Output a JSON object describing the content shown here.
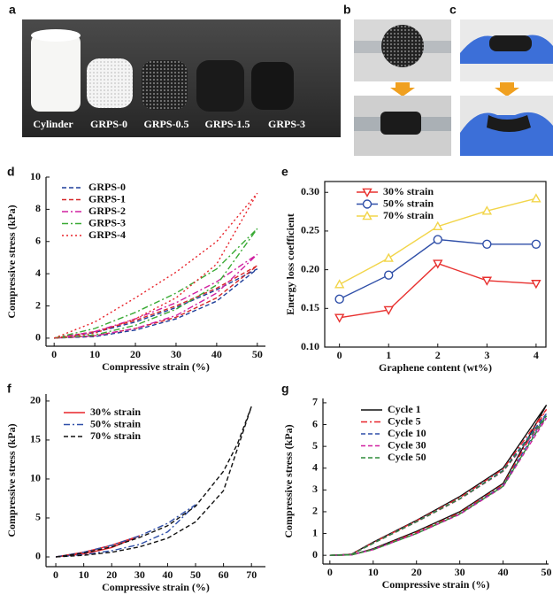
{
  "photo_panels": [
    {
      "panel": "a",
      "labels": [
        "Cylinder",
        "GRPS-0",
        "GRPS-0.5",
        "GRPS-1.5",
        "GRPS-3"
      ]
    },
    {
      "panel": "b"
    },
    {
      "panel": "c"
    }
  ],
  "chart_data": [
    {
      "panel": "d",
      "type": "line",
      "x_label": "Compressive strain (%)",
      "y_label": "Compressive stress (kPa)",
      "xlim": [
        -2,
        52
      ],
      "ylim": [
        -0.5,
        10
      ],
      "xticks": [
        0,
        10,
        20,
        30,
        40,
        50
      ],
      "yticks": [
        0,
        2,
        4,
        6,
        8,
        10
      ],
      "frame": false,
      "legend": "upper left",
      "x": [
        0,
        10,
        20,
        30,
        40,
        50,
        40,
        30,
        20,
        10,
        0
      ],
      "series": [
        {
          "name": "GRPS-0",
          "color": "#1f3f9a",
          "linestyle": "dashed",
          "values": [
            0,
            0.35,
            1.0,
            1.9,
            3.0,
            4.3,
            2.3,
            1.2,
            0.5,
            0.1,
            0
          ]
        },
        {
          "name": "GRPS-1",
          "color": "#d62728",
          "linestyle": "dashed",
          "values": [
            0,
            0.4,
            1.1,
            2.0,
            3.1,
            4.5,
            2.5,
            1.3,
            0.6,
            0.15,
            0
          ]
        },
        {
          "name": "GRPS-2",
          "color": "#d020a0",
          "linestyle": "dashdot",
          "values": [
            0,
            0.4,
            1.2,
            2.2,
            3.5,
            5.2,
            2.8,
            1.4,
            0.6,
            0.15,
            0
          ]
        },
        {
          "name": "GRPS-3",
          "color": "#3aaa35",
          "linestyle": "dashdot",
          "values": [
            0,
            0.6,
            1.6,
            2.8,
            4.3,
            6.8,
            3.3,
            1.8,
            0.8,
            0.2,
            0
          ]
        },
        {
          "name": "GRPS-4",
          "color": "#e8232a",
          "linestyle": "dotted",
          "values": [
            0,
            1.0,
            2.5,
            4.1,
            6.0,
            9.0,
            4.6,
            2.5,
            1.2,
            0.3,
            0
          ]
        }
      ]
    },
    {
      "panel": "e",
      "type": "line",
      "x_label": "Graphene content (wt%)",
      "y_label": "Energy loss coefficient",
      "xlim": [
        -0.3,
        4.2
      ],
      "ylim": [
        0.1,
        0.314
      ],
      "xticks": [
        0,
        1,
        2,
        3,
        4
      ],
      "yticks": [
        {
          "value": 0.1,
          "label": "0.10"
        },
        0.15,
        {
          "value": 0.2,
          "label": "0.20"
        },
        0.25,
        {
          "value": 0.3,
          "label": "0.30"
        }
      ],
      "frame": true,
      "legend": "upper left",
      "x": [
        0,
        1,
        2,
        3,
        4
      ],
      "series": [
        {
          "name": "30% strain",
          "color": "#e8312f",
          "linestyle": "solid",
          "marker": "triangle-down",
          "values": [
            0.138,
            0.148,
            0.208,
            0.186,
            0.182
          ]
        },
        {
          "name": "50% strain",
          "color": "#2f4fa8",
          "linestyle": "solid",
          "marker": "circle",
          "values": [
            0.162,
            0.193,
            0.239,
            0.233,
            0.233
          ]
        },
        {
          "name": "70% strain",
          "color": "#f2d54a",
          "linestyle": "solid",
          "marker": "triangle-up",
          "values": [
            0.181,
            0.215,
            0.256,
            0.276,
            0.292
          ]
        }
      ]
    },
    {
      "panel": "f",
      "type": "line",
      "x_label": "Compressive strain (%)",
      "y_label": "Compressive stress (kPa)",
      "xlim": [
        -3.5,
        75
      ],
      "ylim": [
        -1.25,
        20.9
      ],
      "xticks": [
        0,
        10,
        20,
        30,
        40,
        50,
        60,
        70
      ],
      "yticks": [
        0,
        5,
        10,
        15,
        20
      ],
      "frame": false,
      "legend": "upper left",
      "series": [
        {
          "name": "30% strain",
          "color": "#e8232a",
          "linestyle": "solid",
          "x": [
            0,
            10,
            20,
            30,
            20,
            10,
            0
          ],
          "values": [
            0,
            0.6,
            1.5,
            2.7,
            1.2,
            0.4,
            0
          ]
        },
        {
          "name": "50% strain",
          "color": "#2f4fa8",
          "linestyle": "dashdot",
          "x": [
            0,
            10,
            20,
            30,
            40,
            50,
            40,
            30,
            20,
            10,
            0
          ],
          "values": [
            0,
            0.6,
            1.5,
            2.7,
            4.3,
            6.7,
            3.2,
            1.6,
            0.8,
            0.3,
            0
          ]
        },
        {
          "name": "70% strain",
          "color": "#111111",
          "linestyle": "dashed",
          "x": [
            0,
            10,
            20,
            30,
            40,
            50,
            60,
            65,
            70,
            60,
            50,
            40,
            30,
            20,
            10,
            0
          ],
          "values": [
            0,
            0.5,
            1.3,
            2.5,
            4.0,
            6.5,
            11,
            14.5,
            19.3,
            8.5,
            4.5,
            2.4,
            1.3,
            0.6,
            0.2,
            0
          ]
        }
      ]
    },
    {
      "panel": "g",
      "type": "line",
      "x_label": "Compressive strain (%)",
      "y_label": "Compressive stress (kPa)",
      "xlim": [
        -1.6,
        50.5
      ],
      "ylim": [
        -0.4,
        7.2
      ],
      "xticks": [
        0,
        10,
        20,
        30,
        40,
        50
      ],
      "yticks": [
        0,
        1,
        2,
        3,
        4,
        5,
        6,
        7
      ],
      "frame": false,
      "legend": "upper left",
      "x": [
        0,
        5,
        10,
        20,
        30,
        40,
        50,
        40,
        30,
        20,
        10,
        5,
        0
      ],
      "series": [
        {
          "name": "Cycle 1",
          "color": "#111111",
          "linestyle": "solid",
          "values": [
            0,
            0.05,
            0.6,
            1.6,
            2.7,
            4.0,
            6.9,
            3.3,
            2.0,
            1.1,
            0.3,
            0.02,
            0
          ]
        },
        {
          "name": "Cycle 5",
          "color": "#e8232a",
          "linestyle": "dashdot",
          "values": [
            0,
            0.05,
            0.58,
            1.58,
            2.65,
            3.95,
            6.7,
            3.25,
            1.95,
            1.05,
            0.28,
            0.02,
            0
          ]
        },
        {
          "name": "Cycle 10",
          "color": "#2f4fa8",
          "linestyle": "dashed",
          "values": [
            0,
            0.04,
            0.56,
            1.55,
            2.6,
            3.9,
            6.5,
            3.2,
            1.9,
            1.0,
            0.27,
            0.02,
            0
          ]
        },
        {
          "name": "Cycle 30",
          "color": "#d020a0",
          "linestyle": "dashed",
          "values": [
            0,
            0.04,
            0.55,
            1.53,
            2.58,
            3.85,
            6.3,
            3.15,
            1.88,
            1.0,
            0.26,
            0.02,
            0
          ]
        },
        {
          "name": "Cycle 50",
          "color": "#2e8b3a",
          "linestyle": "dashed",
          "values": [
            0,
            0.04,
            0.55,
            1.54,
            2.59,
            3.87,
            6.4,
            3.17,
            1.9,
            1.0,
            0.26,
            0.02,
            0
          ]
        }
      ]
    }
  ]
}
